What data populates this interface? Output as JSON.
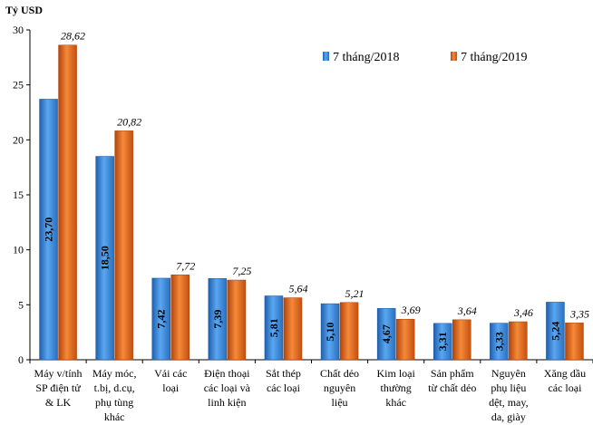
{
  "chart_data": {
    "type": "bar",
    "unit_label": "Tỷ USD",
    "ylim": [
      0,
      30
    ],
    "yticks": [
      0,
      5,
      10,
      15,
      20,
      25,
      30
    ],
    "grid": false,
    "legend_position": "top-right",
    "categories": [
      [
        "Máy v/tính",
        "SP điện tử",
        "& LK"
      ],
      [
        "Máy móc,",
        "t.bị, d.cụ,",
        "phụ tùng",
        "khác"
      ],
      [
        "Vải các",
        "loại"
      ],
      [
        "Điện thoại",
        "các loại và",
        "linh kiện"
      ],
      [
        "Sắt thép",
        "các loại"
      ],
      [
        "Chất dẻo",
        "nguyên",
        "liệu"
      ],
      [
        "Kim loại",
        "thường",
        "khác"
      ],
      [
        "Sản phẩm",
        "từ chất dẻo"
      ],
      [
        "Nguyên",
        "phụ liệu",
        "dệt, may,",
        "da, giày"
      ],
      [
        "Xăng dầu",
        "các loại"
      ]
    ],
    "series": [
      {
        "name": "7 tháng/2018",
        "color": "#3f8fde",
        "values": [
          23.7,
          18.5,
          7.42,
          7.39,
          5.81,
          5.1,
          4.67,
          3.31,
          3.33,
          5.24
        ],
        "labels": [
          "23,70",
          "18,50",
          "7,42",
          "7,39",
          "5,81",
          "5,10",
          "4,67",
          "3,31",
          "3,33",
          "5,24"
        ]
      },
      {
        "name": "7 tháng/2019",
        "color": "#e8671c",
        "values": [
          28.62,
          20.82,
          7.72,
          7.25,
          5.64,
          5.21,
          3.69,
          3.64,
          3.46,
          3.35
        ],
        "labels": [
          "28,62",
          "20,82",
          "7,72",
          "7,25",
          "5,64",
          "5,21",
          "3,69",
          "3,64",
          "3,46",
          "3,35"
        ]
      }
    ]
  }
}
